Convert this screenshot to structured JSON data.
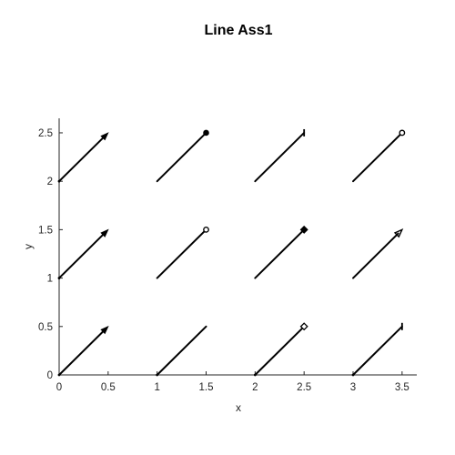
{
  "chart_data": {
    "type": "line",
    "title": "Line Ass1",
    "xlabel": "x",
    "ylabel": "y",
    "xlim": [
      0,
      3.65
    ],
    "ylim": [
      0,
      2.65
    ],
    "xticks": [
      0,
      0.5,
      1,
      1.5,
      2,
      2.5,
      3,
      3.5
    ],
    "yticks": [
      0,
      0.5,
      1,
      1.5,
      2,
      2.5
    ],
    "xtick_labels": [
      "0",
      "0.5",
      "1",
      "1.5",
      "2",
      "2.5",
      "3",
      "3.5"
    ],
    "ytick_labels": [
      "0",
      "0.5",
      "1",
      "1.5",
      "2",
      "2.5"
    ],
    "grid": false,
    "colors": {
      "line": "#000000",
      "axis": "#262626",
      "background": "#ffffff"
    },
    "segments": [
      {
        "x": [
          0,
          0.5
        ],
        "y": [
          2,
          2.5
        ],
        "start": "dot",
        "end": "filled-arrow"
      },
      {
        "x": [
          1,
          1.5
        ],
        "y": [
          2,
          2.5
        ],
        "start": "none",
        "end": "filled-circle"
      },
      {
        "x": [
          2,
          2.5
        ],
        "y": [
          2,
          2.5
        ],
        "start": "none",
        "end": "bar"
      },
      {
        "x": [
          3,
          3.5
        ],
        "y": [
          2,
          2.5
        ],
        "start": "none",
        "end": "open-circle"
      },
      {
        "x": [
          0,
          0.5
        ],
        "y": [
          1,
          1.5
        ],
        "start": "dot",
        "end": "filled-arrow"
      },
      {
        "x": [
          1,
          1.5
        ],
        "y": [
          1,
          1.5
        ],
        "start": "none",
        "end": "open-circle"
      },
      {
        "x": [
          2,
          2.5
        ],
        "y": [
          1,
          1.5
        ],
        "start": "none",
        "end": "filled-diamond"
      },
      {
        "x": [
          3,
          3.5
        ],
        "y": [
          1,
          1.5
        ],
        "start": "none",
        "end": "open-arrow"
      },
      {
        "x": [
          0,
          0.5
        ],
        "y": [
          0,
          0.5
        ],
        "start": "dot",
        "end": "filled-arrow"
      },
      {
        "x": [
          1,
          1.5
        ],
        "y": [
          0,
          0.5
        ],
        "start": "dot",
        "end": "none"
      },
      {
        "x": [
          2,
          2.5
        ],
        "y": [
          0,
          0.5
        ],
        "start": "dot",
        "end": "open-diamond"
      },
      {
        "x": [
          3,
          3.5
        ],
        "y": [
          0,
          0.5
        ],
        "start": "dot",
        "end": "bar"
      }
    ]
  }
}
